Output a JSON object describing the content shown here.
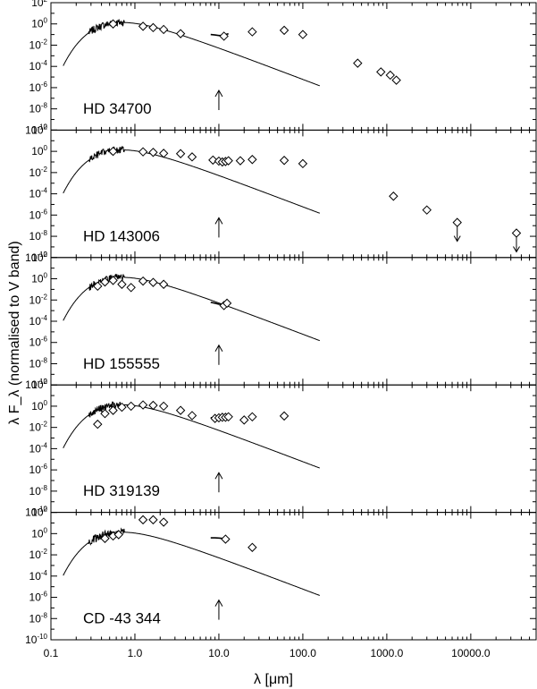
{
  "chart_data": {
    "type": "scatter",
    "xlabel": "λ [μm]",
    "ylabel": "λ F_λ (normalised to V band)",
    "x_scale": "log",
    "y_scale": "log",
    "xlim": [
      0.1,
      60000
    ],
    "ylim": [
      1e-10,
      100
    ],
    "x_ticks": [
      {
        "value": 0.1,
        "label": "0.1"
      },
      {
        "value": 1,
        "label": "1.0"
      },
      {
        "value": 10,
        "label": "10.0"
      },
      {
        "value": 100,
        "label": "100.0"
      },
      {
        "value": 1000,
        "label": "1000.0"
      },
      {
        "value": 10000,
        "label": "10000.0"
      }
    ],
    "y_ticks": [
      {
        "value": 100,
        "base": "10",
        "exp": "2"
      },
      {
        "value": 1,
        "base": "10",
        "exp": "0"
      },
      {
        "value": 0.01,
        "base": "10",
        "exp": "-2"
      },
      {
        "value": 0.0001,
        "base": "10",
        "exp": "-4"
      },
      {
        "value": 1e-06,
        "base": "10",
        "exp": "-6"
      },
      {
        "value": 1e-08,
        "base": "10",
        "exp": "-8"
      },
      {
        "value": 1e-10,
        "base": "10",
        "exp": "-10"
      }
    ],
    "marker_wavelength": 10,
    "panels": [
      {
        "label": "HD 34700",
        "photometry": [
          [
            0.55,
            1.0
          ],
          [
            1.25,
            0.6
          ],
          [
            1.65,
            0.45
          ],
          [
            2.2,
            0.3
          ],
          [
            3.5,
            0.12
          ],
          [
            11.5,
            0.07
          ],
          [
            25,
            0.18
          ],
          [
            60,
            0.25
          ],
          [
            100,
            0.1
          ],
          [
            450,
            0.0002
          ],
          [
            850,
            3e-05
          ],
          [
            1100,
            1.5e-05
          ],
          [
            1300,
            5e-06
          ]
        ],
        "upper_limits": [],
        "ir_spectrum": [
          [
            8,
            0.1
          ],
          [
            9,
            0.09
          ],
          [
            10,
            0.08
          ],
          [
            11,
            0.08
          ],
          [
            12,
            0.1
          ],
          [
            13,
            0.12
          ]
        ]
      },
      {
        "label": "HD 143006",
        "photometry": [
          [
            0.55,
            1.0
          ],
          [
            1.25,
            0.9
          ],
          [
            1.65,
            0.8
          ],
          [
            2.2,
            0.65
          ],
          [
            3.5,
            0.6
          ],
          [
            4.8,
            0.3
          ],
          [
            8.5,
            0.15
          ],
          [
            10,
            0.12
          ],
          [
            11,
            0.1
          ],
          [
            12,
            0.11
          ],
          [
            13,
            0.13
          ],
          [
            18,
            0.13
          ],
          [
            25,
            0.17
          ],
          [
            60,
            0.14
          ],
          [
            100,
            0.07
          ],
          [
            1200,
            6e-05
          ],
          [
            3000,
            3e-06
          ]
        ],
        "upper_limits": [
          [
            6900,
            2e-07
          ],
          [
            35000,
            2e-08
          ]
        ],
        "ir_spectrum": [
          [
            8,
            0.16
          ],
          [
            9,
            0.14
          ],
          [
            10,
            0.13
          ],
          [
            11,
            0.12
          ],
          [
            12,
            0.13
          ],
          [
            13,
            0.14
          ]
        ]
      },
      {
        "label": "HD 155555",
        "photometry": [
          [
            0.36,
            0.2
          ],
          [
            0.44,
            0.5
          ],
          [
            0.55,
            0.7
          ],
          [
            0.7,
            0.3
          ],
          [
            0.9,
            0.15
          ],
          [
            1.25,
            0.6
          ],
          [
            1.65,
            0.45
          ],
          [
            2.2,
            0.3
          ],
          [
            11.5,
            0.003
          ],
          [
            12.5,
            0.005
          ]
        ],
        "upper_limits": [],
        "ir_spectrum": [
          [
            8,
            0.006
          ],
          [
            9,
            0.005
          ],
          [
            10,
            0.004
          ],
          [
            11,
            0.004
          ],
          [
            12,
            0.005
          ],
          [
            13,
            0.006
          ]
        ]
      },
      {
        "label": "HD 319139",
        "photometry": [
          [
            0.36,
            0.02
          ],
          [
            0.44,
            0.2
          ],
          [
            0.55,
            0.4
          ],
          [
            0.7,
            0.8
          ],
          [
            0.9,
            1.0
          ],
          [
            1.25,
            1.3
          ],
          [
            1.65,
            1.2
          ],
          [
            2.2,
            1.0
          ],
          [
            3.5,
            0.4
          ],
          [
            4.8,
            0.13
          ],
          [
            9,
            0.07
          ],
          [
            10,
            0.08
          ],
          [
            11,
            0.09
          ],
          [
            12,
            0.09
          ],
          [
            13,
            0.1
          ],
          [
            20,
            0.05
          ],
          [
            25,
            0.1
          ],
          [
            60,
            0.12
          ]
        ],
        "upper_limits": [],
        "ir_spectrum": [
          [
            8,
            0.08
          ],
          [
            9,
            0.09
          ],
          [
            10,
            0.1
          ],
          [
            11,
            0.1
          ],
          [
            12,
            0.11
          ],
          [
            13,
            0.1
          ]
        ]
      },
      {
        "label": "CD -43 344",
        "photometry": [
          [
            0.44,
            0.35
          ],
          [
            0.55,
            0.6
          ],
          [
            0.64,
            0.8
          ],
          [
            1.25,
            20
          ],
          [
            1.65,
            20
          ],
          [
            2.2,
            12
          ],
          [
            12,
            0.3
          ],
          [
            25,
            0.05
          ]
        ],
        "upper_limits": [],
        "ir_spectrum": [
          [
            8,
            0.4
          ],
          [
            9,
            0.4
          ],
          [
            10,
            0.38
          ],
          [
            11,
            0.35
          ],
          [
            12,
            0.3
          ],
          [
            13,
            0.2
          ]
        ]
      }
    ]
  }
}
